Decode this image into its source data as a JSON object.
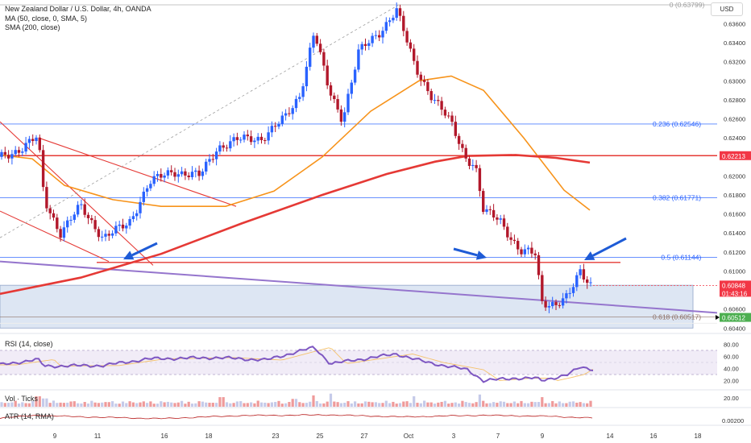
{
  "legend": {
    "title": "New Zealand Dollar / U.S. Dollar, 4h, OANDA",
    "ma": "MA (50, close, 0, SMA, 5)",
    "sma": "SMA (200, close)",
    "rsi": "RSI (14, close)",
    "vol": "Vol · Ticks",
    "atr": "ATR (14, RMA)"
  },
  "currency_button": "USD",
  "colors": {
    "up": "#2962ff",
    "down": "#b2182b",
    "ma50": "#f7931a",
    "sma200": "#e53935",
    "fib": "#2962ff",
    "rsi": "#7e57c2",
    "trend_purple": "#9575cd",
    "arrow": "#1e5bd6",
    "price_label": "#f23645",
    "green_label": "#4caf50"
  },
  "chart_data": [
    {
      "type": "candlestick",
      "pair": "NZD/USD",
      "timeframe": "4h",
      "ylim": [
        0.6036,
        0.6385
      ],
      "y_ticks": [
        "0.63600",
        "0.63400",
        "0.63200",
        "0.63000",
        "0.62800",
        "0.62600",
        "0.62400",
        "0.62000",
        "0.61800",
        "0.61600",
        "0.61400",
        "0.61200",
        "0.61000",
        "0.60600",
        "0.60400"
      ],
      "x_ticks": [
        "9",
        "11",
        "16",
        "18",
        "23",
        "25",
        "27",
        "Oct",
        "3",
        "7",
        "9",
        "14",
        "16",
        "18"
      ],
      "fib_levels": [
        {
          "label": "0 (0.63799)",
          "value": 0.63799
        },
        {
          "label": "0.236 (0.62546)",
          "value": 0.62546
        },
        {
          "label": "0.382 (0.61771)",
          "value": 0.61771
        },
        {
          "label": "0.5 (0.61144)",
          "value": 0.61144
        },
        {
          "label": "0.618 (0.60517)",
          "value": 0.60517
        }
      ],
      "horizontal_lines": [
        0.62213,
        0.6109
      ],
      "price_labels": [
        {
          "text": "0.62213",
          "value": 0.62213
        },
        {
          "price": "0.60848",
          "countdown": "01:43:16",
          "value": 0.60848
        },
        {
          "text": "0.60512",
          "value": 0.60512
        }
      ],
      "anchors": [
        {
          "x": 0,
          "close": 0.622
        },
        {
          "x": 25,
          "close": 0.6228
        },
        {
          "x": 47,
          "close": 0.6241
        },
        {
          "x": 55,
          "close": 0.6175
        },
        {
          "x": 75,
          "close": 0.614
        },
        {
          "x": 100,
          "close": 0.6168
        },
        {
          "x": 128,
          "close": 0.6135
        },
        {
          "x": 160,
          "close": 0.615
        },
        {
          "x": 185,
          "close": 0.6193
        },
        {
          "x": 215,
          "close": 0.6205
        },
        {
          "x": 248,
          "close": 0.62
        },
        {
          "x": 270,
          "close": 0.623
        },
        {
          "x": 295,
          "close": 0.6238
        },
        {
          "x": 325,
          "close": 0.624
        },
        {
          "x": 355,
          "close": 0.6262
        },
        {
          "x": 372,
          "close": 0.6285
        },
        {
          "x": 390,
          "close": 0.6352
        },
        {
          "x": 408,
          "close": 0.629
        },
        {
          "x": 425,
          "close": 0.626
        },
        {
          "x": 445,
          "close": 0.633
        },
        {
          "x": 470,
          "close": 0.635
        },
        {
          "x": 492,
          "close": 0.6375
        },
        {
          "x": 515,
          "close": 0.6315
        },
        {
          "x": 535,
          "close": 0.6285
        },
        {
          "x": 560,
          "close": 0.6255
        },
        {
          "x": 578,
          "close": 0.622
        },
        {
          "x": 590,
          "close": 0.621
        },
        {
          "x": 600,
          "close": 0.6162
        },
        {
          "x": 620,
          "close": 0.6155
        },
        {
          "x": 645,
          "close": 0.612
        },
        {
          "x": 665,
          "close": 0.6118
        },
        {
          "x": 672,
          "close": 0.6068
        },
        {
          "x": 690,
          "close": 0.6065
        },
        {
          "x": 705,
          "close": 0.6072
        },
        {
          "x": 720,
          "close": 0.61
        },
        {
          "x": 735,
          "close": 0.6085
        }
      ]
    },
    {
      "type": "line",
      "name": "RSI (14, close)",
      "ylim": [
        10,
        90
      ],
      "y_ticks": [
        "80.00",
        "60.00",
        "40.00",
        "20.00"
      ],
      "anchors": [
        {
          "x": 0,
          "value": 46
        },
        {
          "x": 47,
          "value": 55
        },
        {
          "x": 55,
          "value": 44
        },
        {
          "x": 128,
          "value": 45
        },
        {
          "x": 185,
          "value": 56
        },
        {
          "x": 270,
          "value": 58
        },
        {
          "x": 330,
          "value": 54
        },
        {
          "x": 390,
          "value": 75
        },
        {
          "x": 410,
          "value": 48
        },
        {
          "x": 492,
          "value": 64
        },
        {
          "x": 530,
          "value": 50
        },
        {
          "x": 580,
          "value": 38
        },
        {
          "x": 600,
          "value": 20
        },
        {
          "x": 640,
          "value": 24
        },
        {
          "x": 665,
          "value": 24
        },
        {
          "x": 672,
          "value": 20
        },
        {
          "x": 705,
          "value": 30
        },
        {
          "x": 720,
          "value": 42
        },
        {
          "x": 735,
          "value": 39
        }
      ]
    },
    {
      "type": "bar",
      "name": "Vol · Ticks",
      "ylim": [
        0,
        35
      ],
      "y_ticks": [
        "20.00"
      ],
      "spikes": [
        {
          "x": 47,
          "value": 24
        },
        {
          "x": 55,
          "value": 19
        },
        {
          "x": 275,
          "value": 22
        },
        {
          "x": 365,
          "value": 18
        },
        {
          "x": 390,
          "value": 26
        },
        {
          "x": 410,
          "value": 30
        },
        {
          "x": 515,
          "value": 24
        },
        {
          "x": 596,
          "value": 28
        },
        {
          "x": 672,
          "value": 22
        }
      ]
    },
    {
      "type": "line",
      "name": "ATR (14, RMA)",
      "y_ticks": [
        "0.00200"
      ],
      "anchors": [
        {
          "x": 0,
          "value": 0.00214
        },
        {
          "x": 47,
          "value": 0.00222
        },
        {
          "x": 90,
          "value": 0.00218
        },
        {
          "x": 200,
          "value": 0.00212
        },
        {
          "x": 300,
          "value": 0.00221
        },
        {
          "x": 410,
          "value": 0.00223
        },
        {
          "x": 500,
          "value": 0.00217
        },
        {
          "x": 596,
          "value": 0.00222
        },
        {
          "x": 680,
          "value": 0.00219
        },
        {
          "x": 735,
          "value": 0.00214
        }
      ]
    }
  ]
}
